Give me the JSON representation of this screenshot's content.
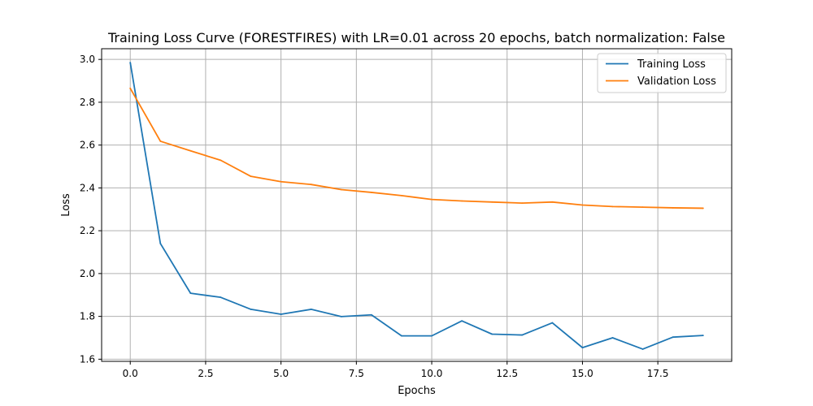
{
  "chart_data": {
    "type": "line",
    "title": "Training Loss Curve (FORESTFIRES) with LR=0.01 across 20 epochs, batch normalization: False",
    "xlabel": "Epochs",
    "ylabel": "Loss",
    "xlim": [
      -0.95,
      19.95
    ],
    "ylim": [
      1.59,
      3.05
    ],
    "xticks": [
      0.0,
      2.5,
      5.0,
      7.5,
      10.0,
      12.5,
      15.0,
      17.5
    ],
    "xtick_labels": [
      "0.0",
      "2.5",
      "5.0",
      "7.5",
      "10.0",
      "12.5",
      "15.0",
      "17.5"
    ],
    "yticks": [
      1.6,
      1.8,
      2.0,
      2.2,
      2.4,
      2.6,
      2.8,
      3.0
    ],
    "ytick_labels": [
      "1.6",
      "1.8",
      "2.0",
      "2.2",
      "2.4",
      "2.6",
      "2.8",
      "3.0"
    ],
    "grid": true,
    "legend_position": "top-right",
    "x": [
      0,
      1,
      2,
      3,
      4,
      5,
      6,
      7,
      8,
      9,
      10,
      11,
      12,
      13,
      14,
      15,
      16,
      17,
      18,
      19
    ],
    "series": [
      {
        "name": "Training Loss",
        "color": "#1f77b4",
        "values": [
          2.985,
          2.14,
          1.908,
          1.889,
          1.833,
          1.81,
          1.833,
          1.799,
          1.807,
          1.709,
          1.709,
          1.779,
          1.717,
          1.713,
          1.77,
          1.654,
          1.7,
          1.647,
          1.703,
          1.711
        ]
      },
      {
        "name": "Validation Loss",
        "color": "#ff7f0e",
        "values": [
          2.865,
          2.618,
          2.573,
          2.529,
          2.454,
          2.429,
          2.416,
          2.392,
          2.379,
          2.364,
          2.346,
          2.339,
          2.334,
          2.329,
          2.334,
          2.32,
          2.313,
          2.31,
          2.307,
          2.305
        ]
      }
    ]
  }
}
